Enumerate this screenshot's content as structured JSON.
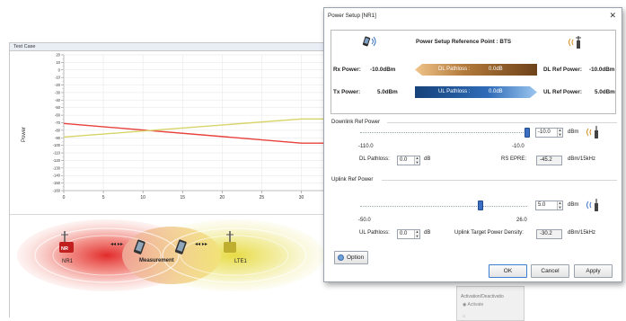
{
  "test_case": {
    "title": "Test Case",
    "power_axis_label": "Power",
    "y_ticks": [
      "20",
      "10",
      "0",
      "-10",
      "-20",
      "-30",
      "-40",
      "-50",
      "-60",
      "-70",
      "-80",
      "-90",
      "-100",
      "-110",
      "-120",
      "-130",
      "-140",
      "-150",
      "-160"
    ],
    "x_ticks": [
      "0",
      "5",
      "10",
      "15",
      "20",
      "25",
      "30",
      "35"
    ],
    "series_colors": {
      "red": "#e8403a",
      "yellow": "#d8d46a"
    },
    "cells": {
      "nr1": "NR1",
      "lte1": "LTE1",
      "measurement": "Measurement",
      "nr_badge": "NR"
    }
  },
  "chart_data": {
    "type": "line",
    "ylabel": "Power",
    "xlabel": "",
    "ylim": [
      -160,
      20
    ],
    "xlim": [
      0,
      38
    ],
    "grid": true,
    "series": [
      {
        "color": "#e8403a",
        "x": [
          0,
          30,
          38
        ],
        "y": [
          -71,
          -97,
          -97
        ]
      },
      {
        "color": "#d8d46a",
        "x": [
          0,
          30,
          38
        ],
        "y": [
          -89,
          -65,
          -65
        ]
      }
    ]
  },
  "activation_panel": {
    "title": "Activation/Deactivatio",
    "radio_label": "Activate"
  },
  "dialog": {
    "title": "Power Setup [NR1]",
    "close": "✕",
    "reference_title": "Power Setup Reference Point : BTS",
    "rx_power_label": "Rx Power:",
    "rx_power_value": "-10.0dBm",
    "dl_pathloss_label": "DL Pathloss :",
    "dl_pathloss_value": "0.0dB",
    "dl_ref_power_label": "DL Ref Power:",
    "dl_ref_power_value": "-10.0dBm",
    "tx_power_label": "Tx Power:",
    "tx_power_value": "5.0dBm",
    "ul_pathloss_label": "UL Pathloss :",
    "ul_pathloss_value": "0.0dB",
    "ul_ref_power_label": "UL Ref Power:",
    "ul_ref_power_value": "5.0dBm",
    "downlink": {
      "group_title": "Downlink Ref Power",
      "spin_value": "-10.0",
      "unit": "dBm",
      "min": "-110.0",
      "max": "-10.0",
      "slider_fraction": 1.0,
      "pathloss_label": "DL Pathloss:",
      "pathloss_value": "0.0",
      "pathloss_unit": "dB",
      "epre_label": "RS EPRE:",
      "epre_value": "-45.2",
      "epre_unit": "dBm/15kHz"
    },
    "uplink": {
      "group_title": "Uplink Ref Power",
      "spin_value": "5.0",
      "unit": "dBm",
      "min": "-50.0",
      "max": "26.0",
      "slider_fraction": 0.72,
      "pathloss_label": "UL Pathloss:",
      "pathloss_value": "0.0",
      "pathloss_unit": "dB",
      "target_label": "Uplink Target Power Density:",
      "target_value": "-30.2",
      "target_unit": "dBm/15kHz"
    },
    "buttons": {
      "option": "Option",
      "ok": "OK",
      "cancel": "Cancel",
      "apply": "Apply"
    },
    "colors": {
      "dl_arrow": "#8a5a2b",
      "ul_arrow": "#1d4f8f",
      "accent": "#3a6fc4"
    }
  }
}
